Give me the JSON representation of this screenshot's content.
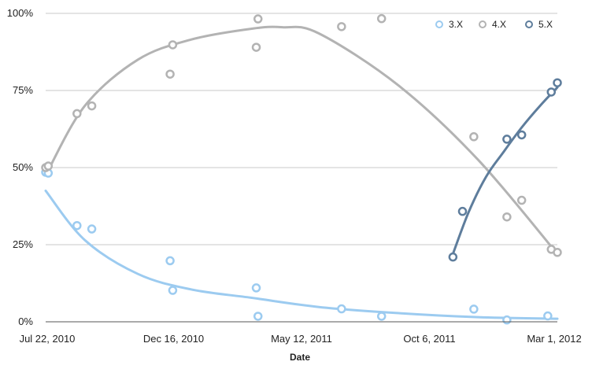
{
  "chart_data": {
    "type": "scatter",
    "title": "",
    "xlabel": "Date",
    "ylabel": "",
    "x_scale": "date",
    "xlim": [
      "2010-07-22",
      "2012-03-01"
    ],
    "ylim": [
      0,
      100
    ],
    "x_ticks": [
      {
        "date": "2010-07-22",
        "label": "Jul 22, 2010"
      },
      {
        "date": "2010-12-16",
        "label": "Dec 16, 2010"
      },
      {
        "date": "2011-05-12",
        "label": "May 12, 2011"
      },
      {
        "date": "2011-10-06",
        "label": "Oct 6, 2011"
      },
      {
        "date": "2012-03-01",
        "label": "Mar 1, 2012"
      }
    ],
    "y_ticks": [
      {
        "value": 0,
        "label": "0%"
      },
      {
        "value": 25,
        "label": "25%"
      },
      {
        "value": 50,
        "label": "50%"
      },
      {
        "value": 75,
        "label": "75%"
      },
      {
        "value": 100,
        "label": "100%"
      }
    ],
    "grid": "horizontal",
    "legend_position": "top-right",
    "series": [
      {
        "name": "3.X",
        "color": "#9ccbf0",
        "points": [
          {
            "x": "2010-07-22",
            "y": 48.5
          },
          {
            "x": "2010-07-25",
            "y": 48.2
          },
          {
            "x": "2010-08-27",
            "y": 31.2
          },
          {
            "x": "2010-09-13",
            "y": 30.1
          },
          {
            "x": "2010-12-12",
            "y": 19.8
          },
          {
            "x": "2010-12-15",
            "y": 10.2
          },
          {
            "x": "2011-03-21",
            "y": 11.0
          },
          {
            "x": "2011-03-23",
            "y": 1.8
          },
          {
            "x": "2011-06-27",
            "y": 4.2
          },
          {
            "x": "2011-08-12",
            "y": 1.8
          },
          {
            "x": "2011-11-26",
            "y": 4.1
          },
          {
            "x": "2012-01-03",
            "y": 0.6
          },
          {
            "x": "2012-02-19",
            "y": 1.9
          }
        ],
        "trend": [
          {
            "x": "2010-07-22",
            "y": 42.5
          },
          {
            "x": "2010-09-05",
            "y": 26.5
          },
          {
            "x": "2010-11-05",
            "y": 15.5
          },
          {
            "x": "2011-01-05",
            "y": 10.5
          },
          {
            "x": "2011-03-15",
            "y": 7.8
          },
          {
            "x": "2011-06-01",
            "y": 4.8
          },
          {
            "x": "2011-09-01",
            "y": 2.8
          },
          {
            "x": "2011-12-01",
            "y": 1.5
          },
          {
            "x": "2012-03-01",
            "y": 1.0
          }
        ]
      },
      {
        "name": "4.X",
        "color": "#b3b3b3",
        "points": [
          {
            "x": "2010-07-22",
            "y": 50.0
          },
          {
            "x": "2010-07-25",
            "y": 50.5
          },
          {
            "x": "2010-08-27",
            "y": 67.5
          },
          {
            "x": "2010-09-13",
            "y": 70.0
          },
          {
            "x": "2010-12-12",
            "y": 80.3
          },
          {
            "x": "2010-12-15",
            "y": 89.8
          },
          {
            "x": "2011-03-21",
            "y": 89.0
          },
          {
            "x": "2011-03-23",
            "y": 98.2
          },
          {
            "x": "2011-06-27",
            "y": 95.7
          },
          {
            "x": "2011-08-12",
            "y": 98.3
          },
          {
            "x": "2011-11-26",
            "y": 60.0
          },
          {
            "x": "2012-01-03",
            "y": 34.0
          },
          {
            "x": "2012-01-20",
            "y": 39.4
          },
          {
            "x": "2012-02-23",
            "y": 23.5
          },
          {
            "x": "2012-03-01",
            "y": 22.5
          }
        ],
        "trend": [
          {
            "x": "2010-07-22",
            "y": 47.5
          },
          {
            "x": "2010-09-05",
            "y": 70.0
          },
          {
            "x": "2010-11-05",
            "y": 85.0
          },
          {
            "x": "2011-01-05",
            "y": 91.5
          },
          {
            "x": "2011-03-15",
            "y": 95.0
          },
          {
            "x": "2011-04-20",
            "y": 95.5
          },
          {
            "x": "2011-06-01",
            "y": 93.5
          },
          {
            "x": "2011-09-01",
            "y": 76.5
          },
          {
            "x": "2011-12-01",
            "y": 52.5
          },
          {
            "x": "2012-03-01",
            "y": 22.0
          }
        ]
      },
      {
        "name": "5.X",
        "color": "#5e7d9c",
        "points": [
          {
            "x": "2011-11-02",
            "y": 21.0
          },
          {
            "x": "2011-11-13",
            "y": 35.8
          },
          {
            "x": "2012-01-03",
            "y": 59.2
          },
          {
            "x": "2012-01-20",
            "y": 60.6
          },
          {
            "x": "2012-02-23",
            "y": 74.5
          },
          {
            "x": "2012-03-01",
            "y": 77.5
          }
        ],
        "trend": [
          {
            "x": "2011-11-02",
            "y": 22.0
          },
          {
            "x": "2011-11-20",
            "y": 35.5
          },
          {
            "x": "2011-12-10",
            "y": 47.0
          },
          {
            "x": "2011-12-30",
            "y": 55.0
          },
          {
            "x": "2012-01-20",
            "y": 63.0
          },
          {
            "x": "2012-02-10",
            "y": 70.0
          },
          {
            "x": "2012-03-01",
            "y": 76.0
          }
        ]
      }
    ]
  }
}
